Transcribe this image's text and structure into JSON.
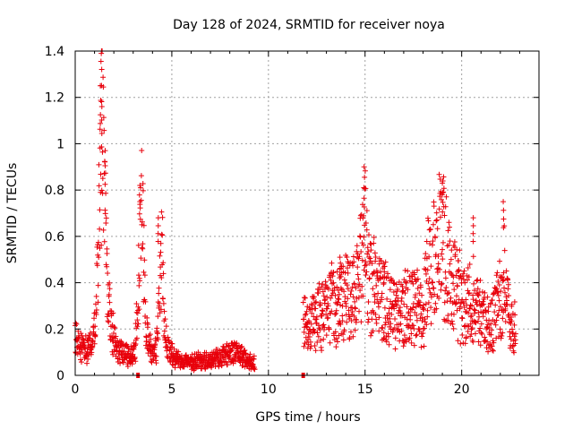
{
  "chart_data": {
    "type": "scatter",
    "title": "Day 128 of 2024, SRMTID for receiver noya",
    "xlabel": "GPS time / hours",
    "ylabel": "SRMTID / TECUs",
    "xlim": [
      0,
      24
    ],
    "ylim": [
      0,
      1.4
    ],
    "xticks": [
      0,
      5,
      10,
      15,
      20
    ],
    "xtick_labels": [
      "0",
      "5",
      "10",
      "15",
      "20"
    ],
    "yticks": [
      0,
      0.2,
      0.4,
      0.6,
      0.8,
      1.0,
      1.2,
      1.4
    ],
    "ytick_labels": [
      "0",
      "0.2",
      "0.4",
      "0.6",
      "0.8",
      "1",
      "1.2",
      "1.4"
    ],
    "grid": true,
    "marker": "plus",
    "series_color": "#e8000b",
    "data_gaps_marked_at_zero": [
      3.25,
      11.8
    ],
    "profile": {
      "x": [
        0.0,
        0.3,
        0.6,
        0.9,
        1.1,
        1.3,
        1.4,
        1.5,
        1.6,
        1.7,
        1.8,
        2.0,
        2.2,
        2.5,
        2.8,
        3.1,
        3.3,
        3.45,
        3.55,
        3.65,
        3.8,
        4.0,
        4.2,
        4.4,
        4.5,
        4.6,
        4.8,
        5.2,
        5.8,
        6.5,
        7.2,
        7.8,
        8.3,
        8.7,
        9.0,
        9.3,
        11.8,
        12.1,
        12.5,
        13.0,
        13.5,
        14.0,
        14.5,
        14.85,
        15.0,
        15.1,
        15.3,
        15.6,
        16.0,
        16.4,
        16.8,
        17.2,
        17.6,
        18.0,
        18.3,
        18.6,
        18.9,
        19.1,
        19.3,
        19.6,
        19.9,
        20.2,
        20.6,
        21.0,
        21.5,
        21.9,
        22.2,
        22.4,
        22.8
      ],
      "y": [
        0.16,
        0.12,
        0.11,
        0.15,
        0.32,
        0.95,
        1.05,
        0.8,
        0.55,
        0.35,
        0.25,
        0.16,
        0.11,
        0.1,
        0.09,
        0.1,
        0.45,
        0.7,
        0.5,
        0.22,
        0.14,
        0.1,
        0.12,
        0.4,
        0.55,
        0.25,
        0.12,
        0.07,
        0.06,
        0.06,
        0.07,
        0.09,
        0.1,
        0.08,
        0.06,
        0.05,
        0.22,
        0.2,
        0.25,
        0.28,
        0.3,
        0.32,
        0.35,
        0.5,
        0.7,
        0.5,
        0.36,
        0.34,
        0.32,
        0.28,
        0.27,
        0.3,
        0.3,
        0.26,
        0.45,
        0.5,
        0.6,
        0.55,
        0.45,
        0.38,
        0.32,
        0.3,
        0.33,
        0.25,
        0.2,
        0.3,
        0.45,
        0.25,
        0.2
      ],
      "point_count": 1900
    },
    "peaks": [
      {
        "x": 1.35,
        "y": 1.39
      },
      {
        "x": 1.3,
        "y": 1.25
      },
      {
        "x": 1.38,
        "y": 1.16
      },
      {
        "x": 1.55,
        "y": 0.97
      },
      {
        "x": 3.35,
        "y": 0.82
      },
      {
        "x": 4.3,
        "y": 0.68
      },
      {
        "x": 14.95,
        "y": 0.9
      },
      {
        "x": 19.0,
        "y": 0.83
      },
      {
        "x": 20.6,
        "y": 0.68
      },
      {
        "x": 22.15,
        "y": 0.75
      },
      {
        "x": 13.7,
        "y": 0.51
      },
      {
        "x": 16.0,
        "y": 0.47
      }
    ]
  }
}
